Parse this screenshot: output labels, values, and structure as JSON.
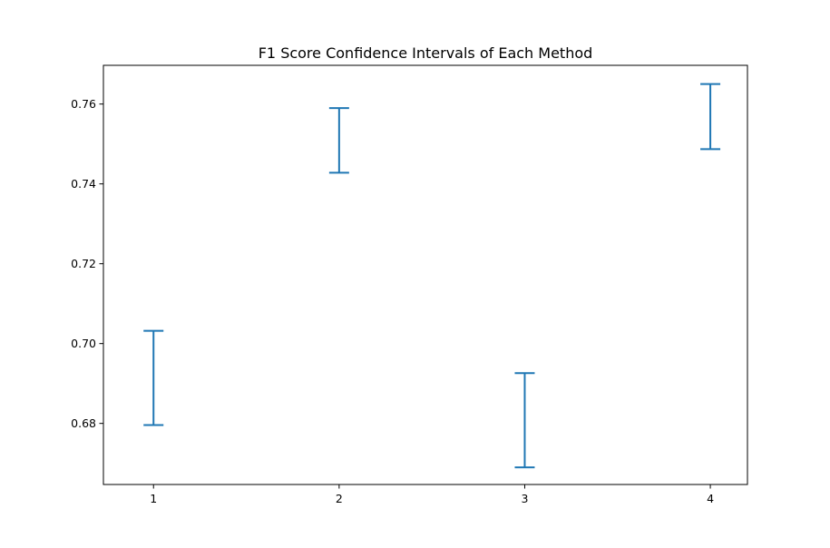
{
  "chart_data": {
    "type": "errorbar",
    "title": "F1 Score Confidence Intervals of Each Method",
    "xlabel": "",
    "ylabel": "",
    "categories": [
      "1",
      "2",
      "3",
      "4"
    ],
    "x": [
      1,
      2,
      3,
      4
    ],
    "intervals": [
      {
        "x": 1,
        "low": 0.6796,
        "high": 0.7032
      },
      {
        "x": 2,
        "low": 0.7428,
        "high": 0.759
      },
      {
        "x": 3,
        "low": 0.669,
        "high": 0.6926
      },
      {
        "x": 4,
        "low": 0.7487,
        "high": 0.765
      }
    ],
    "xlim": [
      0.73,
      4.2
    ],
    "ylim": [
      0.6647,
      0.7697
    ],
    "xticks": [
      "1",
      "2",
      "3",
      "4"
    ],
    "yticks": [
      "0.68",
      "0.70",
      "0.72",
      "0.74",
      "0.76"
    ],
    "color": "#1f77b4",
    "grid": false
  }
}
